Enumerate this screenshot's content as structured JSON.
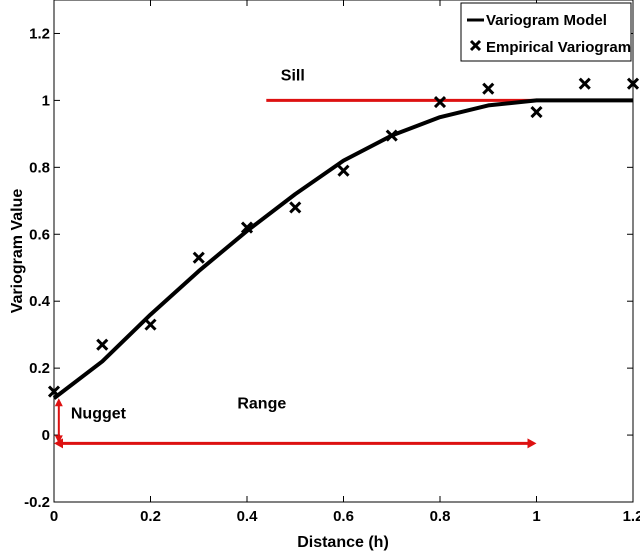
{
  "chart_data": {
    "type": "line",
    "title": "",
    "xlabel": "Distance (h)",
    "ylabel": "Variogram Value",
    "xlim": [
      0,
      1.2
    ],
    "ylim": [
      -0.2,
      1.3
    ],
    "xticks": [
      0,
      0.2,
      0.4,
      0.6,
      0.8,
      1,
      1.2
    ],
    "xtick_labels": [
      "0",
      "0.2",
      "0.4",
      "0.6",
      "0.8",
      "1",
      "1.2"
    ],
    "yticks": [
      -0.2,
      0,
      0.2,
      0.4,
      0.6,
      0.8,
      1,
      1.2
    ],
    "ytick_labels": [
      "-0.2",
      "0",
      "0.2",
      "0.4",
      "0.6",
      "0.8",
      "1",
      "1.2"
    ],
    "grid": false,
    "legend_position": "top-right",
    "series": [
      {
        "name": "Variogram Model",
        "type": "line",
        "color": "#000000",
        "x": [
          0,
          0.1,
          0.2,
          0.3,
          0.4,
          0.5,
          0.6,
          0.7,
          0.8,
          0.9,
          1.0,
          1.1,
          1.2
        ],
        "y": [
          0.11,
          0.22,
          0.36,
          0.49,
          0.61,
          0.72,
          0.82,
          0.895,
          0.95,
          0.985,
          1.0,
          1.0,
          1.0
        ]
      },
      {
        "name": "Empirical Variogram",
        "type": "scatter",
        "marker": "x",
        "color": "#000000",
        "x": [
          0,
          0.1,
          0.2,
          0.3,
          0.4,
          0.5,
          0.6,
          0.7,
          0.8,
          0.9,
          1.0,
          1.1,
          1.2
        ],
        "y": [
          0.13,
          0.27,
          0.33,
          0.53,
          0.62,
          0.68,
          0.79,
          0.895,
          0.995,
          1.035,
          0.965,
          1.05,
          1.05
        ]
      }
    ],
    "annotations": {
      "sill": {
        "label": "Sill",
        "y": 1.0,
        "x_start": 0.44,
        "x_end": 1.2,
        "color": "#dd1111"
      },
      "range": {
        "label": "Range",
        "y": -0.025,
        "x_start": 0,
        "x_end": 1.0,
        "color": "#dd1111"
      },
      "nugget": {
        "label": "Nugget",
        "x": 0.01,
        "y_start": -0.025,
        "y_end": 0.11,
        "color": "#dd1111"
      }
    }
  }
}
